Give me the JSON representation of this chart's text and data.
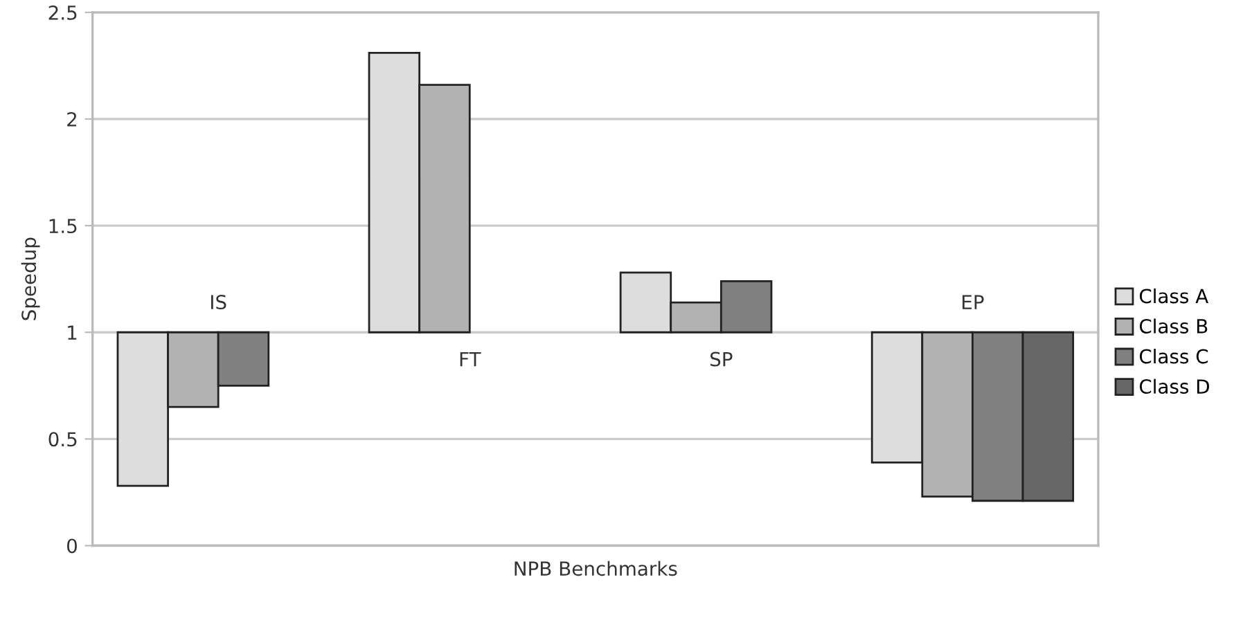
{
  "chart_data": {
    "type": "bar",
    "xlabel": "NPB Benchmarks",
    "ylabel": "Speedup",
    "categories": [
      "IS",
      "FT",
      "SP",
      "EP"
    ],
    "series": [
      {
        "name": "Class A",
        "color": "#dddddd",
        "base": [
          1,
          1,
          1,
          1
        ],
        "values": [
          -0.72,
          1.31,
          0.28,
          -0.61
        ]
      },
      {
        "name": "Class B",
        "color": "#b2b2b2",
        "base": [
          1,
          1,
          1,
          1
        ],
        "values": [
          -0.35,
          1.16,
          0.14,
          -0.77
        ]
      },
      {
        "name": "Class C",
        "color": "#808080",
        "base": [
          1,
          null,
          1,
          1
        ],
        "values": [
          -0.25,
          null,
          0.24,
          -0.79
        ]
      },
      {
        "name": "Class D",
        "color": "#666666",
        "base": [
          null,
          null,
          null,
          1
        ],
        "values": [
          null,
          null,
          null,
          -0.79
        ]
      }
    ],
    "ylim": [
      0,
      2.5
    ],
    "yticks": [
      0,
      0.5,
      1,
      1.5,
      2,
      2.5
    ],
    "grid": "y",
    "legend": "right"
  }
}
